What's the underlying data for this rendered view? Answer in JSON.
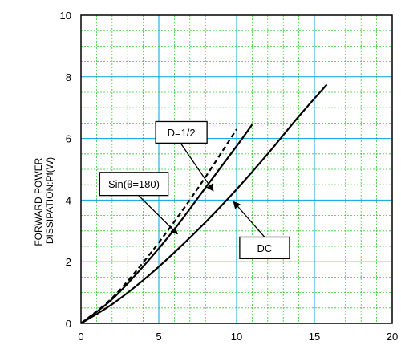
{
  "chart_data": {
    "type": "line",
    "title": "",
    "ylabel": [
      "FORWARD POWER",
      "DISSIPATION:Pf(W)"
    ],
    "xlabel": "",
    "xlim": [
      0,
      20
    ],
    "ylim": [
      0,
      10
    ],
    "x_ticks": [
      "0",
      "5",
      "10",
      "15",
      "20"
    ],
    "y_ticks": [
      "0",
      "2",
      "4",
      "6",
      "8",
      "10"
    ],
    "grid": {
      "major": true,
      "minor": true,
      "major_color": "#00a0e0",
      "minor_color": "#33cc33"
    },
    "series": [
      {
        "id": "dc",
        "style": "solid",
        "x": [
          0,
          2,
          4,
          6,
          8,
          10,
          12,
          14,
          15.8
        ],
        "y": [
          0,
          0.62,
          1.4,
          2.3,
          3.28,
          4.35,
          5.5,
          6.72,
          7.75
        ]
      },
      {
        "id": "d-half",
        "style": "solid",
        "x": [
          0,
          2,
          4,
          6,
          8,
          10,
          11
        ],
        "y": [
          0,
          0.78,
          1.85,
          3.05,
          4.4,
          5.75,
          6.45
        ]
      },
      {
        "id": "sin",
        "style": "dashed",
        "x": [
          0,
          2,
          4,
          6,
          8,
          10
        ],
        "y": [
          0,
          0.82,
          1.98,
          3.3,
          4.75,
          6.3
        ]
      }
    ],
    "annotations": [
      {
        "id": "ann-d-half",
        "text": "D=1/2",
        "box_x": [
          4.8,
          8.1
        ],
        "box_y": [
          5.85,
          6.55
        ],
        "arrow_from": [
          6.4,
          5.85
        ],
        "arrow_to": [
          8.5,
          4.3
        ]
      },
      {
        "id": "ann-sin",
        "text": "Sin(θ=180)",
        "box_x": [
          1.2,
          5.6
        ],
        "box_y": [
          4.15,
          4.9
        ],
        "arrow_from": [
          3.7,
          4.15
        ],
        "arrow_to": [
          6.2,
          2.9
        ]
      },
      {
        "id": "ann-dc",
        "text": "DC",
        "box_x": [
          10.2,
          13.4
        ],
        "box_y": [
          2.1,
          2.8
        ],
        "arrow_from": [
          11.8,
          2.8
        ],
        "arrow_to": [
          9.8,
          3.95
        ]
      }
    ]
  }
}
